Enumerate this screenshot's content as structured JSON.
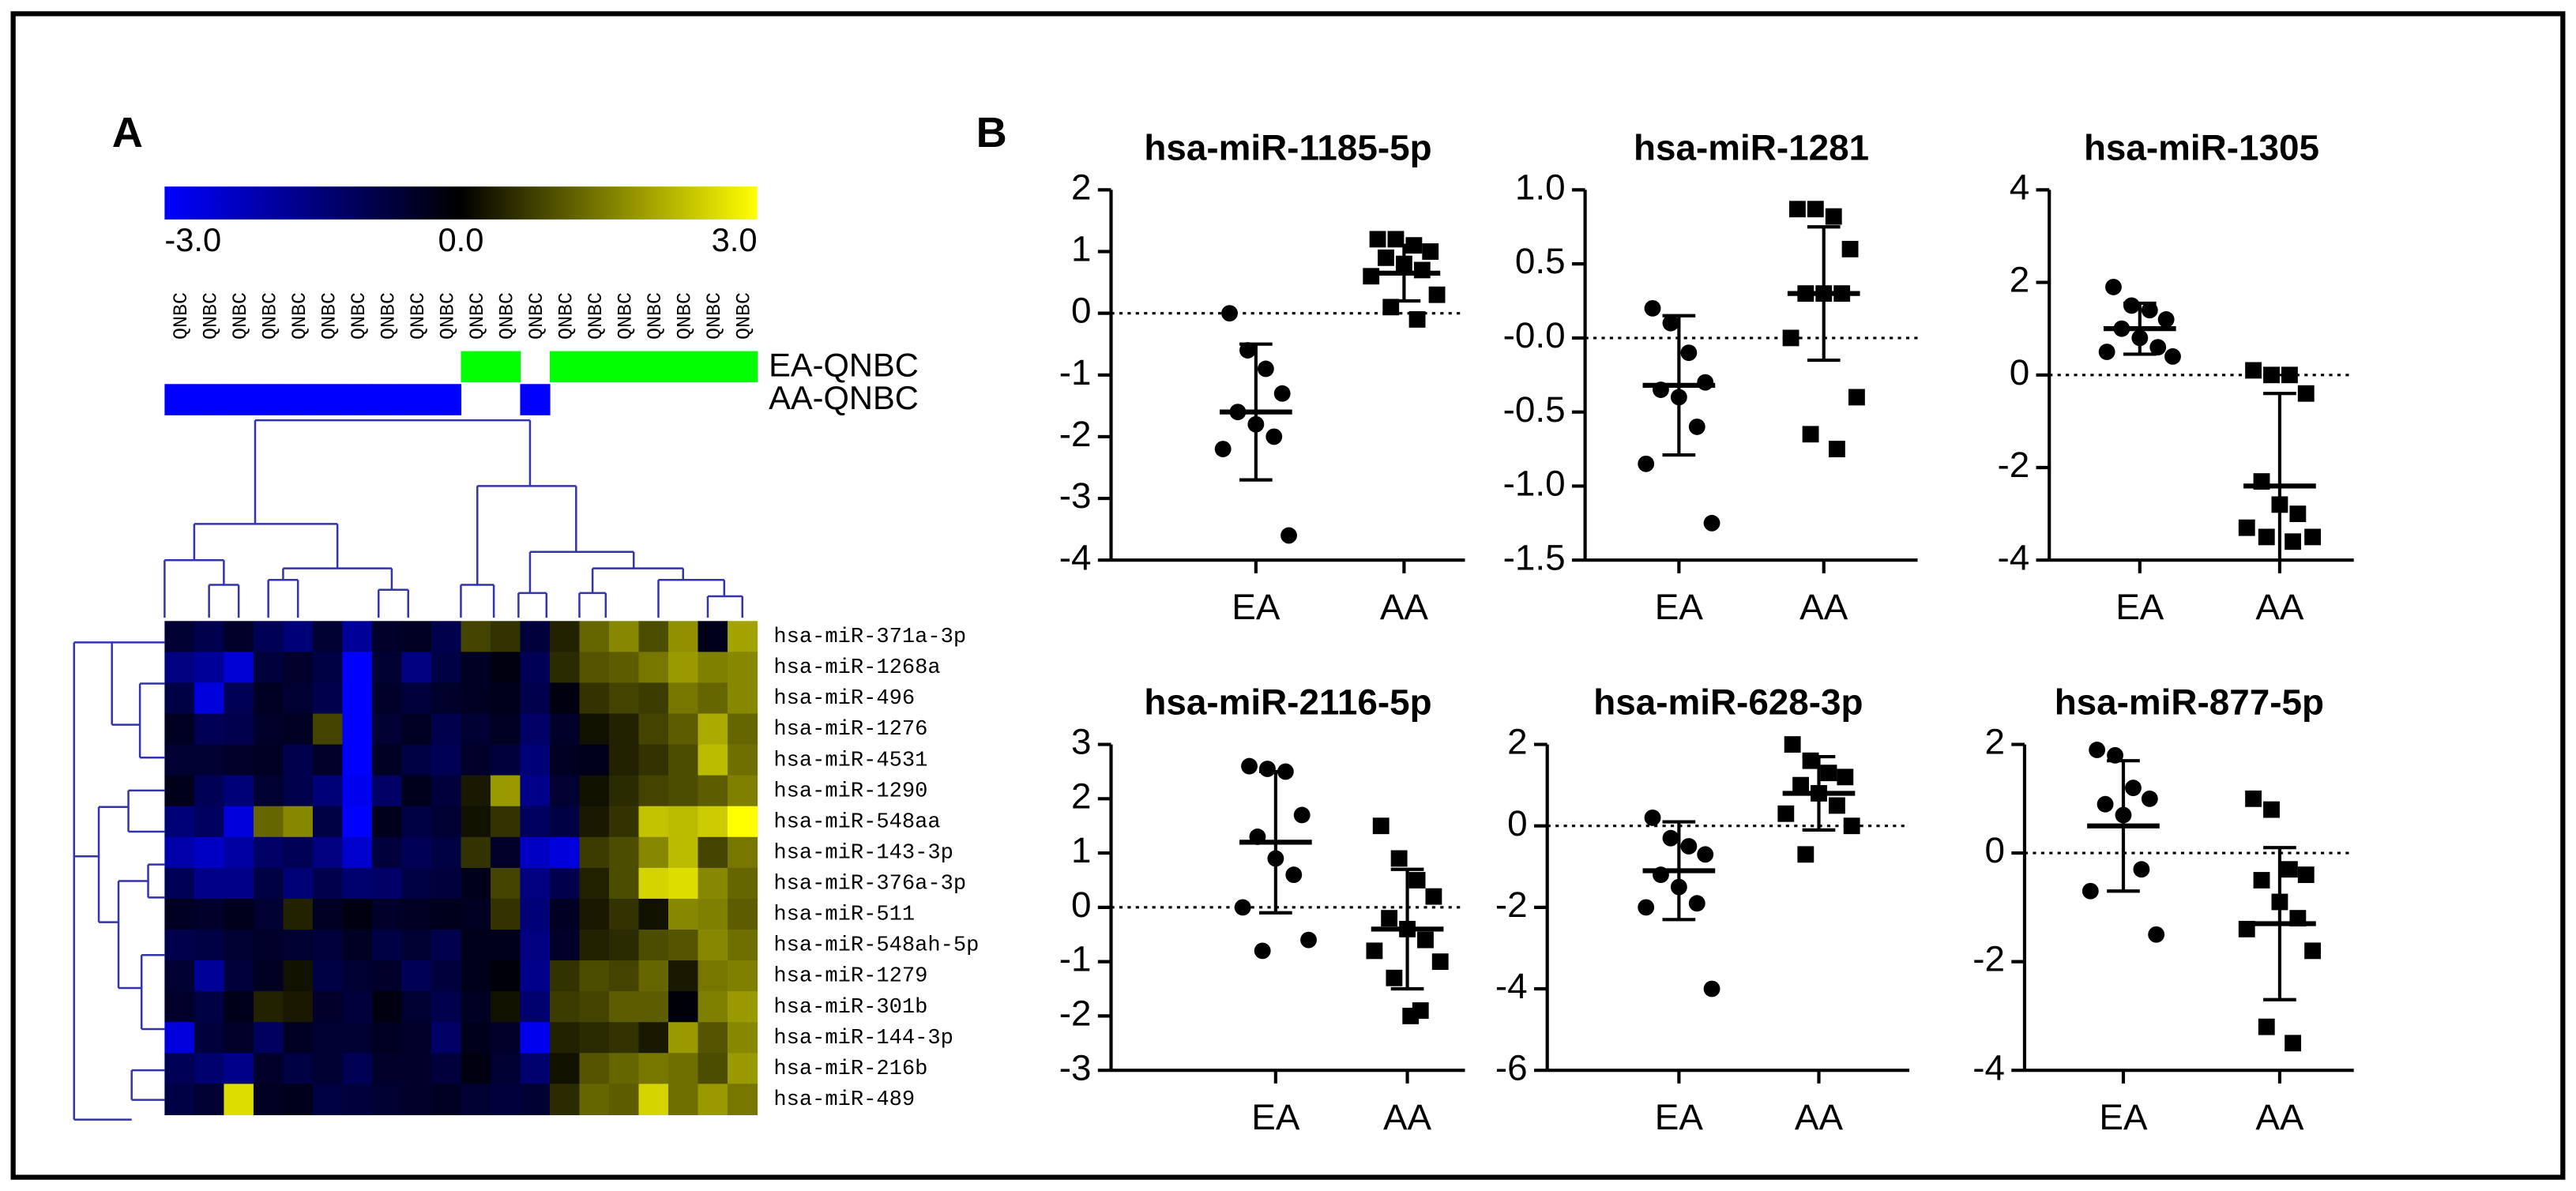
{
  "panels": [
    "A",
    "B"
  ],
  "chart_data": [
    {
      "type": "heatmap",
      "clim": [
        -3,
        3
      ],
      "colorscale": [
        "#0000ff",
        "#000000",
        "#ffff00"
      ],
      "colorbar_ticks": [
        {
          "value": -3,
          "label": "-3.0"
        },
        {
          "value": 0,
          "label": "0.0"
        },
        {
          "value": 3,
          "label": "3.0"
        }
      ],
      "columns": [
        "QNBC",
        "QNBC",
        "QNBC",
        "QNBC",
        "QNBC",
        "QNBC",
        "QNBC",
        "QNBC",
        "QNBC",
        "QNBC",
        "QNBC",
        "QNBC",
        "QNBC",
        "QNBC",
        "QNBC",
        "QNBC",
        "QNBC",
        "QNBC",
        "QNBC",
        "QNBC"
      ],
      "tracks": [
        {
          "label": "EA-QNBC",
          "color": "#00ff00",
          "columns": [
            10,
            11,
            13,
            14,
            15,
            16,
            17,
            18,
            19
          ]
        },
        {
          "label": "AA-QNBC",
          "color": "#0000ff",
          "columns": [
            0,
            1,
            2,
            3,
            4,
            5,
            6,
            7,
            8,
            9,
            12
          ]
        }
      ],
      "rows": [
        "hsa-miR-371a-3p",
        "hsa-miR-1268a",
        "hsa-miR-496",
        "hsa-miR-1276",
        "hsa-miR-4531",
        "hsa-miR-1290",
        "hsa-miR-548aa",
        "hsa-miR-143-3p",
        "hsa-miR-376a-3p",
        "hsa-miR-511",
        "hsa-miR-548ah-5p",
        "hsa-miR-1279",
        "hsa-miR-301b",
        "hsa-miR-144-3p",
        "hsa-miR-216b",
        "hsa-miR-489"
      ],
      "values": [
        [
          -0.6,
          -0.9,
          -0.5,
          -1.0,
          -1.4,
          -0.6,
          -1.8,
          -0.5,
          -0.4,
          -0.9,
          0.8,
          0.6,
          -0.7,
          0.4,
          1.2,
          1.6,
          0.9,
          1.7,
          -0.3,
          1.9
        ],
        [
          -1.5,
          -1.8,
          -2.5,
          -0.7,
          -0.5,
          -0.8,
          -3.0,
          -0.6,
          -1.5,
          -0.8,
          -0.4,
          -0.2,
          -1.0,
          0.5,
          1.0,
          1.1,
          1.4,
          1.8,
          1.5,
          1.6
        ],
        [
          -0.8,
          -2.6,
          -1.0,
          -0.4,
          -0.6,
          -0.9,
          -3.0,
          -0.5,
          -0.7,
          -0.5,
          -0.4,
          -0.3,
          -0.9,
          -0.2,
          0.6,
          0.8,
          0.7,
          1.4,
          1.2,
          1.6
        ],
        [
          -0.4,
          -1.0,
          -0.9,
          -0.5,
          -0.4,
          0.8,
          -3.0,
          -0.6,
          -0.4,
          -0.9,
          -0.6,
          -0.4,
          -1.2,
          -0.5,
          0.2,
          0.4,
          0.8,
          1.1,
          2.0,
          1.2
        ],
        [
          -0.6,
          -0.6,
          -0.5,
          -0.4,
          -0.9,
          -0.5,
          -3.0,
          -0.4,
          -0.8,
          -1.0,
          -0.5,
          -0.7,
          -1.4,
          -0.4,
          -0.3,
          0.4,
          0.6,
          0.9,
          2.2,
          1.3
        ],
        [
          -0.3,
          -1.0,
          -1.4,
          -0.6,
          -0.9,
          -1.4,
          -2.8,
          -1.2,
          -0.3,
          -0.7,
          0.3,
          1.8,
          -1.6,
          -0.6,
          0.2,
          0.5,
          0.8,
          0.9,
          1.1,
          1.5
        ],
        [
          -1.4,
          -1.1,
          -2.6,
          1.2,
          1.6,
          -0.8,
          -3.0,
          -0.3,
          -0.8,
          -0.6,
          0.2,
          0.6,
          -1.1,
          -0.8,
          0.3,
          0.6,
          2.3,
          2.2,
          2.4,
          3.0
        ],
        [
          -2.0,
          -2.3,
          -1.9,
          -1.2,
          -1.0,
          -1.5,
          -2.4,
          -0.7,
          -1.0,
          -0.8,
          0.6,
          -0.5,
          -2.3,
          -2.6,
          0.7,
          0.9,
          1.6,
          2.2,
          0.8,
          1.4
        ],
        [
          -1.0,
          -1.6,
          -1.6,
          -0.8,
          -1.4,
          -0.9,
          -1.3,
          -1.2,
          -0.8,
          -0.7,
          -0.3,
          0.8,
          -1.5,
          -0.9,
          0.4,
          0.9,
          2.5,
          2.6,
          1.6,
          1.2
        ],
        [
          -0.4,
          -0.5,
          -0.3,
          -0.6,
          0.4,
          -0.4,
          -0.2,
          -0.5,
          -0.4,
          -0.3,
          -0.4,
          0.6,
          -1.4,
          -0.4,
          0.3,
          0.6,
          0.2,
          1.6,
          1.5,
          1.1
        ],
        [
          -0.9,
          -0.8,
          -0.6,
          -0.5,
          -0.6,
          -0.7,
          -0.4,
          -0.8,
          -0.6,
          -0.9,
          -0.3,
          -0.3,
          -1.5,
          -0.5,
          0.4,
          0.5,
          0.9,
          1.0,
          1.6,
          1.3
        ],
        [
          -0.6,
          -1.8,
          -0.7,
          -0.4,
          0.2,
          -0.8,
          -0.6,
          -0.5,
          -1.0,
          -0.7,
          -0.3,
          -0.1,
          -1.6,
          0.6,
          0.9,
          0.8,
          1.2,
          0.3,
          1.4,
          1.5
        ],
        [
          -0.5,
          -0.8,
          -0.3,
          0.4,
          0.3,
          -0.5,
          -0.7,
          -0.2,
          -0.6,
          -0.9,
          -0.4,
          0.2,
          -1.3,
          0.7,
          0.8,
          1.1,
          1.1,
          -0.1,
          1.5,
          1.8
        ],
        [
          -2.6,
          -0.7,
          -0.5,
          -1.1,
          -0.4,
          -0.6,
          -0.6,
          -0.4,
          -0.5,
          -1.2,
          -0.3,
          -0.5,
          -2.8,
          0.4,
          0.5,
          0.6,
          0.3,
          1.8,
          1.0,
          1.6
        ],
        [
          -1.0,
          -1.3,
          -1.6,
          -0.5,
          -0.8,
          -0.6,
          -1.0,
          -0.5,
          -0.5,
          -0.7,
          -0.2,
          -0.6,
          -1.3,
          0.2,
          1.0,
          1.2,
          1.4,
          1.3,
          0.9,
          1.8
        ],
        [
          -0.8,
          -0.6,
          2.6,
          -0.4,
          -0.3,
          -0.8,
          -0.7,
          -0.6,
          -0.5,
          -0.4,
          -0.6,
          -0.7,
          -0.6,
          0.5,
          1.2,
          1.1,
          2.5,
          1.3,
          1.8,
          1.4
        ]
      ]
    },
    {
      "type": "dot_plot",
      "title": "hsa-miR-1185-5p",
      "categories": [
        "EA",
        "AA"
      ],
      "color": "#000000",
      "ylim": [
        -4,
        2
      ],
      "yticks": [
        -4,
        -3,
        -2,
        -1,
        0,
        1,
        2
      ],
      "zero_line": 0,
      "groups": [
        {
          "marker": "circle",
          "values": [
            0.0,
            -0.6,
            -0.9,
            -1.3,
            -1.6,
            -1.8,
            -2.0,
            -2.2,
            -3.6
          ],
          "mean": -1.6,
          "sd": 1.1
        },
        {
          "marker": "square",
          "values": [
            1.2,
            1.2,
            1.1,
            1.0,
            0.9,
            0.8,
            0.7,
            0.6,
            0.3,
            0.1,
            -0.1
          ],
          "mean": 0.65,
          "sd": 0.45
        }
      ]
    },
    {
      "type": "dot_plot",
      "title": "hsa-miR-1281",
      "categories": [
        "EA",
        "AA"
      ],
      "color": "#000000",
      "ylim": [
        -1.5,
        1.0
      ],
      "yticks": [
        {
          "value": -1.5,
          "label": "-1.5"
        },
        {
          "value": -1,
          "label": "-1.0"
        },
        -0.5,
        {
          "value": 0,
          "label": "-0.0"
        },
        0.5,
        {
          "value": 1,
          "label": "1.0"
        }
      ],
      "zero_line": 0,
      "groups": [
        {
          "marker": "circle",
          "values": [
            0.2,
            0.1,
            -0.1,
            -0.3,
            -0.35,
            -0.4,
            -0.6,
            -0.85,
            -1.25
          ],
          "mean": -0.32,
          "sd": 0.47
        },
        {
          "marker": "square",
          "values": [
            0.87,
            0.87,
            0.82,
            0.6,
            0.3,
            0.3,
            0.3,
            0.0,
            -0.4,
            -0.65,
            -0.75
          ],
          "mean": 0.3,
          "sd": 0.45
        }
      ]
    },
    {
      "type": "dot_plot",
      "title": "hsa-miR-1305",
      "categories": [
        "EA",
        "AA"
      ],
      "color": "#000000",
      "ylim": [
        -4,
        4
      ],
      "yticks": [
        -4,
        -2,
        0,
        2,
        4
      ],
      "zero_line": 0,
      "groups": [
        {
          "marker": "circle",
          "values": [
            1.9,
            1.5,
            1.4,
            1.2,
            1.0,
            0.8,
            0.6,
            0.5,
            0.4
          ],
          "mean": 1.0,
          "sd": 0.55
        },
        {
          "marker": "square",
          "values": [
            0.1,
            0.0,
            0.0,
            -0.4,
            -2.3,
            -2.8,
            -3.0,
            -3.3,
            -3.5,
            -3.5,
            -3.6
          ],
          "mean": -2.4,
          "sd": 2.0
        }
      ]
    },
    {
      "type": "dot_plot",
      "title": "hsa-miR-2116-5p",
      "categories": [
        "EA",
        "AA"
      ],
      "color": "#000000",
      "ylim": [
        -3,
        3
      ],
      "yticks": [
        -3,
        -2,
        -1,
        0,
        1,
        2,
        3
      ],
      "zero_line": 0,
      "groups": [
        {
          "marker": "circle",
          "values": [
            2.6,
            2.55,
            2.5,
            1.7,
            1.3,
            0.9,
            0.6,
            0.0,
            -0.6,
            -0.8
          ],
          "mean": 1.2,
          "sd": 1.3
        },
        {
          "marker": "square",
          "values": [
            1.5,
            0.9,
            0.5,
            0.2,
            -0.2,
            -0.4,
            -0.6,
            -0.8,
            -1.0,
            -1.3,
            -1.9,
            -2.0
          ],
          "mean": -0.4,
          "sd": 1.1
        }
      ]
    },
    {
      "type": "dot_plot",
      "title": "hsa-miR-628-3p",
      "categories": [
        "EA",
        "AA"
      ],
      "color": "#000000",
      "ylim": [
        -6,
        2
      ],
      "yticks": [
        -6,
        -4,
        -2,
        0,
        2
      ],
      "zero_line": 0,
      "groups": [
        {
          "marker": "circle",
          "values": [
            0.2,
            -0.3,
            -0.5,
            -0.7,
            -1.2,
            -1.5,
            -1.9,
            -2.0,
            -4.0
          ],
          "mean": -1.1,
          "sd": 1.2
        },
        {
          "marker": "square",
          "values": [
            2.0,
            1.6,
            1.3,
            1.2,
            1.0,
            0.8,
            0.5,
            0.3,
            0.0,
            -0.7
          ],
          "mean": 0.8,
          "sd": 0.9
        }
      ]
    },
    {
      "type": "dot_plot",
      "title": "hsa-miR-877-5p",
      "categories": [
        "EA",
        "AA"
      ],
      "color": "#000000",
      "ylim": [
        -4,
        2
      ],
      "yticks": [
        -4,
        -2,
        0,
        2
      ],
      "zero_line": 0,
      "groups": [
        {
          "marker": "circle",
          "values": [
            1.9,
            1.8,
            1.2,
            1.0,
            0.9,
            0.7,
            -0.3,
            -0.7,
            -1.5
          ],
          "mean": 0.5,
          "sd": 1.2
        },
        {
          "marker": "square",
          "values": [
            1.0,
            0.8,
            -0.3,
            -0.4,
            -0.5,
            -0.9,
            -1.2,
            -1.4,
            -1.8,
            -3.2,
            -3.5
          ],
          "mean": -1.3,
          "sd": 1.4
        }
      ]
    }
  ]
}
